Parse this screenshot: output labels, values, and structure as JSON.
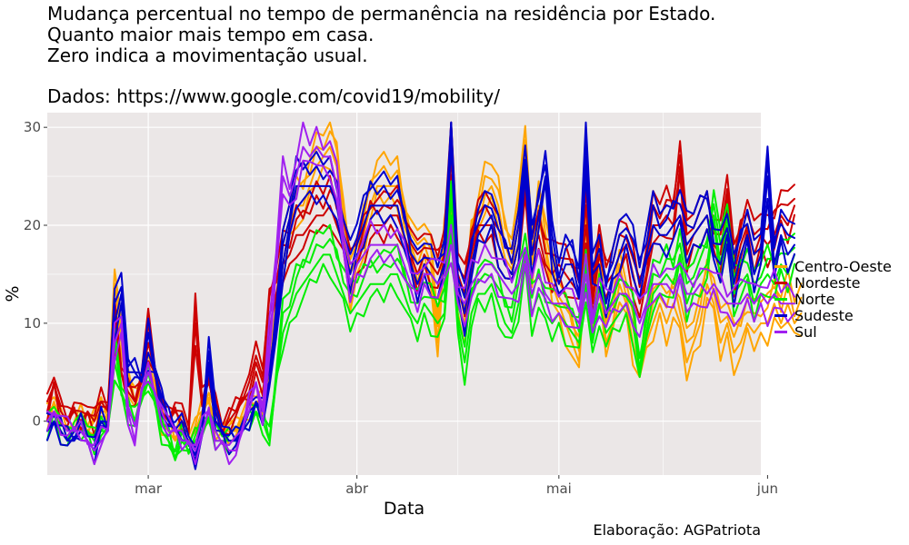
{
  "title_lines": [
    "Mudança percentual no tempo de permanência na residência por Estado.",
    "Quanto maior mais tempo em casa.",
    "Zero indica a movimentação usual."
  ],
  "subtitle": "Dados: https://www.google.com/covid19/mobility/",
  "caption": "Elaboração: AGPatriota",
  "colors": {
    "panel_bg": "#ebe7e7",
    "grid": "#ffffff",
    "axis_text": "#4d4d4d"
  },
  "chart_data": {
    "type": "line",
    "title": "Mudança percentual no tempo de permanência na residência por Estado.",
    "xlabel": "Data",
    "ylabel": "%",
    "x_range": [
      "2020-02-15",
      "2020-05-31"
    ],
    "ylim": [
      -5.5,
      31.5
    ],
    "y_ticks": [
      0,
      10,
      20,
      30
    ],
    "x_ticks": [
      {
        "date": "2020-03-01",
        "label": "mar"
      },
      {
        "date": "2020-04-01",
        "label": "abr"
      },
      {
        "date": "2020-05-01",
        "label": "mai"
      },
      {
        "date": "2020-06-01",
        "label": "jun"
      }
    ],
    "grid": true,
    "legend_position": "right",
    "series": [
      {
        "name": "Centro-Oeste",
        "color": "#FFA500",
        "start_date": "2020-02-15",
        "values": [
          0,
          2,
          0,
          -1,
          -1,
          0,
          -1,
          0,
          1,
          0,
          12,
          8,
          4,
          2,
          3,
          5,
          4,
          0,
          -1,
          -2,
          -1,
          -2,
          -1,
          1,
          2,
          -1,
          -1,
          -1,
          -1,
          0,
          1,
          2,
          2,
          5,
          10,
          16,
          20,
          22,
          22,
          24,
          26,
          27,
          28,
          26,
          20,
          13,
          16,
          19,
          22,
          24,
          24,
          24,
          24,
          20,
          18,
          16,
          18,
          16,
          8,
          18,
          22,
          12,
          10,
          18,
          20,
          23,
          24,
          22,
          18,
          16,
          20,
          28,
          16,
          22,
          18,
          14,
          12,
          10,
          8,
          6,
          18,
          10,
          16,
          8,
          10,
          14,
          12,
          8,
          5,
          8,
          10,
          12,
          10,
          12,
          10,
          6,
          8,
          10,
          14,
          12,
          8,
          10,
          7,
          8,
          10,
          9,
          10,
          10,
          12,
          10,
          12,
          10,
          11
        ]
      },
      {
        "name": "Nordeste",
        "color": "#CC0000",
        "start_date": "2020-02-15",
        "values": [
          1,
          4,
          1,
          0,
          1,
          0,
          1,
          0,
          2,
          1,
          9,
          5,
          3,
          2,
          4,
          8,
          5,
          1,
          0,
          1,
          0,
          -1,
          10,
          2,
          4,
          1,
          -1,
          0,
          1,
          2,
          3,
          6,
          4,
          11,
          13,
          16,
          17,
          19,
          19,
          20,
          21,
          21,
          22,
          20,
          18,
          14,
          16,
          18,
          20,
          20,
          20,
          21,
          21,
          19,
          17,
          15,
          17,
          16,
          15,
          17,
          27,
          15,
          13,
          17,
          20,
          20,
          20,
          18,
          16,
          15,
          18,
          24,
          17,
          19,
          16,
          15,
          16,
          15,
          14,
          13,
          20,
          12,
          17,
          14,
          15,
          17,
          18,
          15,
          12,
          15,
          20,
          20,
          21,
          20,
          26,
          17,
          19,
          20,
          21,
          18,
          17,
          23,
          15,
          18,
          20,
          17,
          19,
          18,
          19,
          21,
          20,
          22
        ]
      },
      {
        "name": "Norte",
        "color": "#00EE00",
        "start_date": "2020-02-15",
        "values": [
          -1,
          1,
          -1,
          -2,
          -1,
          -1,
          -1,
          -2,
          -1,
          -1,
          6,
          3,
          1,
          0,
          2,
          4,
          2,
          -1,
          -2,
          -4,
          -2,
          -3,
          -2,
          -1,
          0,
          -2,
          -2,
          -2,
          -2,
          -1,
          0,
          1,
          0,
          -2,
          4,
          9,
          11,
          13,
          14,
          15,
          16,
          17,
          17,
          15,
          13,
          11,
          12,
          13,
          14,
          14,
          14,
          15,
          15,
          13,
          11,
          10,
          12,
          11,
          10,
          11,
          21,
          10,
          6,
          11,
          13,
          13,
          14,
          12,
          10,
          9,
          12,
          17,
          11,
          13,
          11,
          10,
          11,
          10,
          9,
          8,
          14,
          8,
          12,
          9,
          10,
          11,
          12,
          10,
          5,
          9,
          13,
          14,
          15,
          14,
          17,
          12,
          14,
          15,
          16,
          21,
          16,
          20,
          13,
          14,
          15,
          12,
          14,
          15,
          14,
          16,
          15,
          17
        ]
      },
      {
        "name": "Sudeste",
        "color": "#0000CC",
        "start_date": "2020-02-15",
        "values": [
          -1,
          0,
          -1,
          -2,
          -2,
          -1,
          -2,
          -3,
          0,
          -1,
          10,
          13,
          5,
          5,
          4,
          7,
          5,
          2,
          0,
          -1,
          -1,
          -2,
          -4,
          -1,
          6,
          0,
          -1,
          -2,
          -2,
          -1,
          0,
          2,
          1,
          4,
          9,
          16,
          20,
          24,
          24,
          24,
          24,
          24,
          24,
          22,
          18,
          15,
          18,
          20,
          22,
          22,
          22,
          22,
          22,
          19,
          16,
          14,
          16,
          15,
          14,
          16,
          30,
          14,
          11,
          16,
          19,
          20,
          21,
          18,
          16,
          15,
          18,
          26,
          17,
          21,
          25,
          17,
          14,
          16,
          16,
          13,
          27,
          15,
          16,
          12,
          15,
          17,
          19,
          17,
          14,
          17,
          20,
          19,
          19,
          20,
          21,
          18,
          19,
          20,
          21,
          17,
          16,
          19,
          14,
          17,
          19,
          15,
          17,
          25,
          16,
          19,
          17,
          18
        ]
      },
      {
        "name": "Sul",
        "color": "#A020F0",
        "start_date": "2020-02-15",
        "values": [
          0,
          1,
          0,
          -1,
          -1,
          -1,
          -2,
          -3,
          -2,
          -1,
          8,
          10,
          1,
          -2,
          3,
          5,
          3,
          1,
          -1,
          -1,
          -2,
          -2,
          -3,
          -1,
          1,
          -2,
          -2,
          -3,
          -3,
          -1,
          2,
          4,
          1,
          8,
          16,
          25,
          23,
          25,
          28,
          27,
          28,
          27,
          27,
          24,
          18,
          14,
          16,
          17,
          18,
          18,
          18,
          18,
          18,
          16,
          14,
          13,
          15,
          15,
          14,
          15,
          18,
          13,
          12,
          14,
          15,
          16,
          16,
          15,
          14,
          13,
          14,
          17,
          13,
          15,
          13,
          12,
          12,
          12,
          11,
          10,
          15,
          10,
          13,
          11,
          12,
          13,
          13,
          12,
          10,
          12,
          14,
          14,
          14,
          13,
          15,
          13,
          13,
          14,
          13,
          14,
          13,
          12,
          12,
          12,
          13,
          12,
          13,
          12,
          13,
          12,
          12,
          12
        ]
      }
    ]
  }
}
